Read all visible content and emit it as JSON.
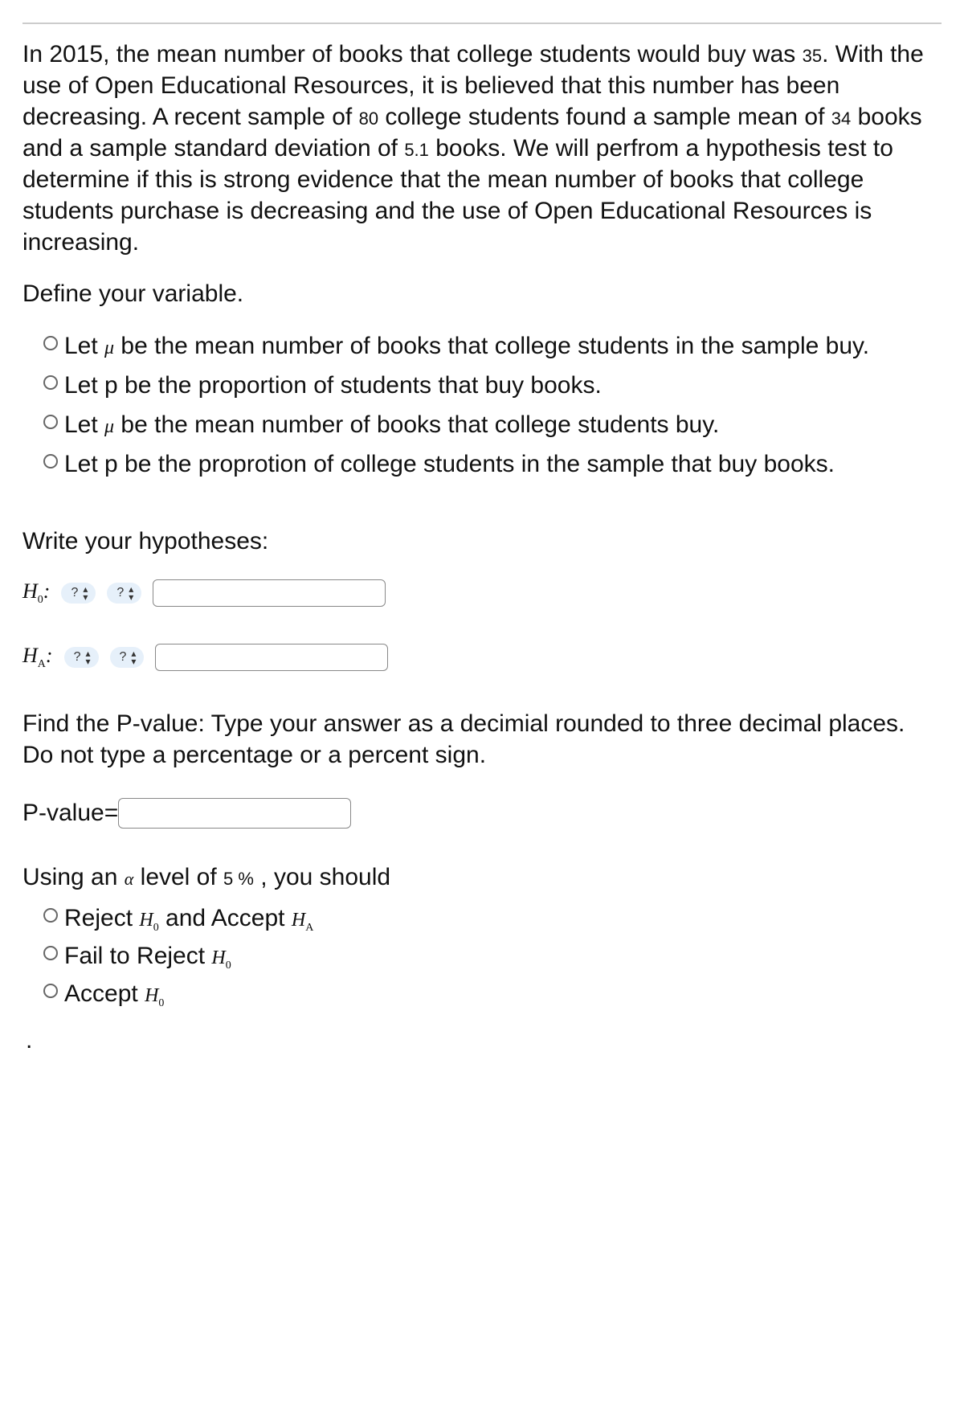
{
  "prompt": {
    "line1a": "In 2015, the mean number of books that college students would buy was ",
    "num1": "35",
    "line1b": ". With the use of Open Educational Resources, it is believed that this number has been decreasing. A recent sample of ",
    "num2": "80",
    "line1c": " college students found a sample mean of ",
    "num3": "34",
    "line1d": " books and a sample standard deviation of ",
    "num4": "5.1",
    "line1e": " books. We will perfrom a hypothesis test to determine if this is strong evidence that the mean number of books that college students purchase is decreasing and the use of Open Educational Resources is increasing."
  },
  "define_label": "Define your variable.",
  "variable_options": {
    "o1a": "Let ",
    "o1mu": "μ",
    "o1b": " be the mean number of books that college students in the sample buy.",
    "o2": "Let p be the proportion of students that buy books.",
    "o3a": "Let ",
    "o3mu": "μ",
    "o3b": " be the mean number of books that college students buy.",
    "o4": "Let p be the proprotion of college students in the sample that buy books."
  },
  "hypotheses_label": "Write your hypotheses:",
  "h0_label": "H",
  "h0_sub": "0",
  "ha_label": "H",
  "ha_sub": "A",
  "select_placeholder": "?",
  "pvalue_instruction": "Find the P-value: Type your answer as a decimial rounded to three decimal places. Do not type a percentage or a percent sign.",
  "pvalue_label": "P-value=",
  "decision": {
    "lead": "Using an ",
    "alpha": "α",
    "mid": " level of ",
    "pct": "5 %",
    "tail": " , you should"
  },
  "decision_options": {
    "d1a": "Reject ",
    "d1h0": "H",
    "d1h0s": "0",
    "d1mid": " and Accept ",
    "d1ha": "H",
    "d1has": "A",
    "d2a": "Fail to Reject ",
    "d2h0": "H",
    "d2h0s": "0",
    "d3a": "Accept ",
    "d3h0": "H",
    "d3h0s": "0"
  },
  "dot": "."
}
